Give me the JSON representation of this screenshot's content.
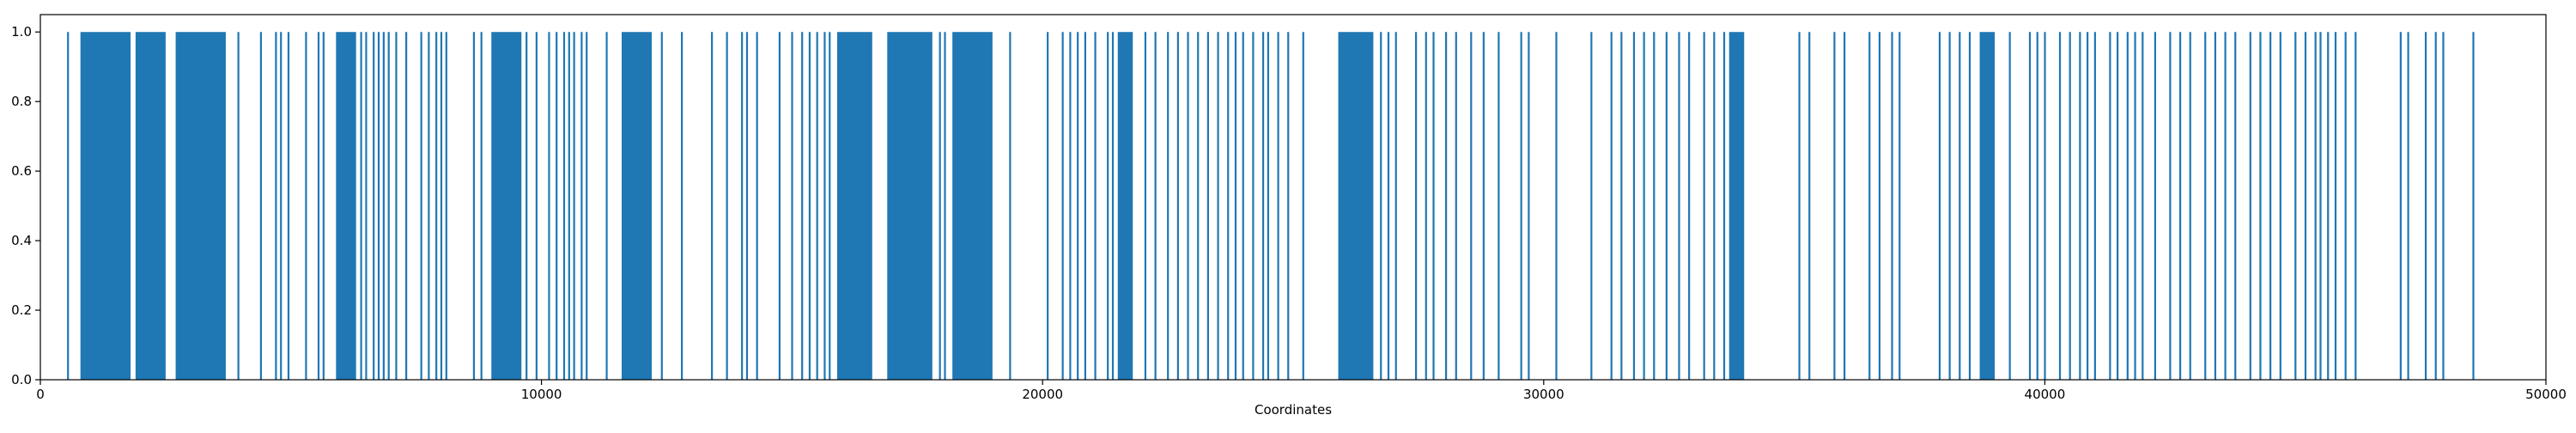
{
  "chart_data": {
    "type": "bar",
    "title": "",
    "xlabel": "Coordinates",
    "ylabel": "",
    "xlim": [
      0,
      50000
    ],
    "ylim": [
      0,
      1.05
    ],
    "grid": false,
    "bar_color": "#1f77b4",
    "x_ticks": [
      0,
      10000,
      20000,
      30000,
      40000,
      50000
    ],
    "x_tick_labels": [
      "0",
      "10000",
      "20000",
      "30000",
      "40000",
      "50000"
    ],
    "y_ticks": [
      0.0,
      0.2,
      0.4,
      0.6,
      0.8,
      1.0
    ],
    "y_tick_labels": [
      "0.0",
      "0.2",
      "0.4",
      "0.6",
      "0.8",
      "1.0"
    ],
    "spans": [
      [
        800,
        1800
      ],
      [
        1900,
        2500
      ],
      [
        2700,
        3700
      ],
      [
        5900,
        6300
      ],
      [
        9000,
        9600
      ],
      [
        11600,
        12200
      ],
      [
        15900,
        16600
      ],
      [
        16900,
        17800
      ],
      [
        18200,
        19000
      ],
      [
        21500,
        21800
      ],
      [
        25900,
        26600
      ],
      [
        33700,
        34000
      ],
      [
        38700,
        39000
      ]
    ],
    "positions": [
      550,
      3950,
      4400,
      4700,
      4800,
      4950,
      5300,
      5550,
      5650,
      6400,
      6500,
      6650,
      6750,
      6850,
      6950,
      7100,
      7300,
      7600,
      7750,
      7900,
      8000,
      8100,
      8650,
      8800,
      9700,
      9900,
      10150,
      10300,
      10450,
      10550,
      10650,
      10800,
      10900,
      11300,
      12400,
      12800,
      13400,
      13700,
      14000,
      14100,
      14300,
      14750,
      15000,
      15200,
      15350,
      15500,
      15650,
      15750,
      17950,
      18050,
      19350,
      20100,
      20400,
      20550,
      20700,
      20850,
      21050,
      21300,
      21400,
      22050,
      22250,
      22500,
      22700,
      22900,
      23100,
      23300,
      23500,
      23700,
      23850,
      24000,
      24200,
      24400,
      24500,
      24700,
      24900,
      25200,
      26750,
      26900,
      27050,
      27450,
      27650,
      27800,
      28050,
      28250,
      28550,
      28800,
      29100,
      29550,
      29700,
      30250,
      30950,
      31350,
      31550,
      31800,
      32000,
      32200,
      32450,
      32700,
      32900,
      33200,
      33400,
      33600,
      35100,
      35300,
      35800,
      36000,
      36500,
      36700,
      36950,
      37100,
      37900,
      38100,
      38300,
      38500,
      39300,
      39700,
      39850,
      40000,
      40300,
      40500,
      40700,
      40850,
      41000,
      41300,
      41450,
      41650,
      41800,
      41950,
      42200,
      42500,
      42700,
      42900,
      43200,
      43400,
      43600,
      43800,
      44100,
      44300,
      44500,
      44700,
      45000,
      45200,
      45400,
      45500,
      45650,
      45800,
      46000,
      46200,
      47100,
      47250,
      47600,
      47800,
      47950,
      48550
    ]
  }
}
